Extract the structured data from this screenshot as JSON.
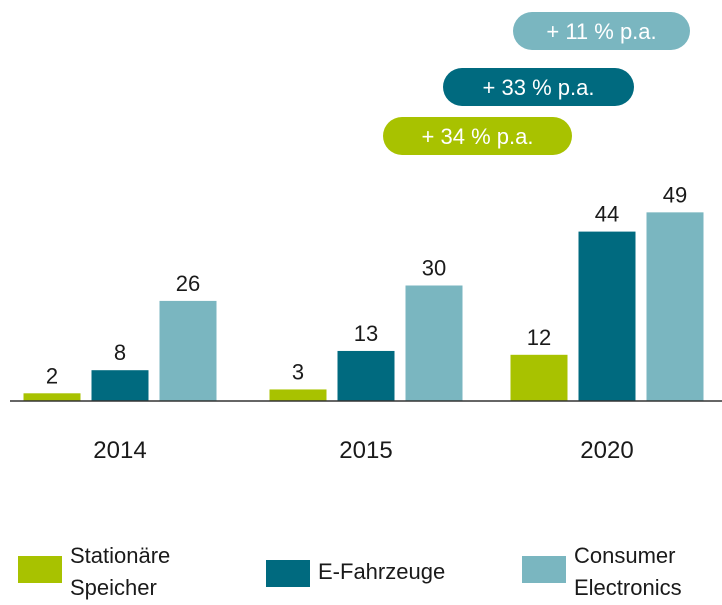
{
  "chart_data": {
    "type": "bar",
    "categories": [
      "2014",
      "2015",
      "2020"
    ],
    "series": [
      {
        "name": "Stationäre Speicher",
        "color": "#a8c200",
        "values": [
          2,
          3,
          12
        ]
      },
      {
        "name": "E-Fahrzeuge",
        "color": "#006a7f",
        "values": [
          8,
          13,
          44
        ]
      },
      {
        "name": "Consumer Electronics",
        "color": "#7ab6c0",
        "values": [
          26,
          30,
          49
        ]
      }
    ],
    "annotations": [
      {
        "text": "+ 11 % p.a.",
        "color": "#7ab6c0"
      },
      {
        "text": "+ 33 % p.a.",
        "color": "#006a7f"
      },
      {
        "text": "+ 34 % p.a.",
        "color": "#a8c200"
      }
    ]
  }
}
